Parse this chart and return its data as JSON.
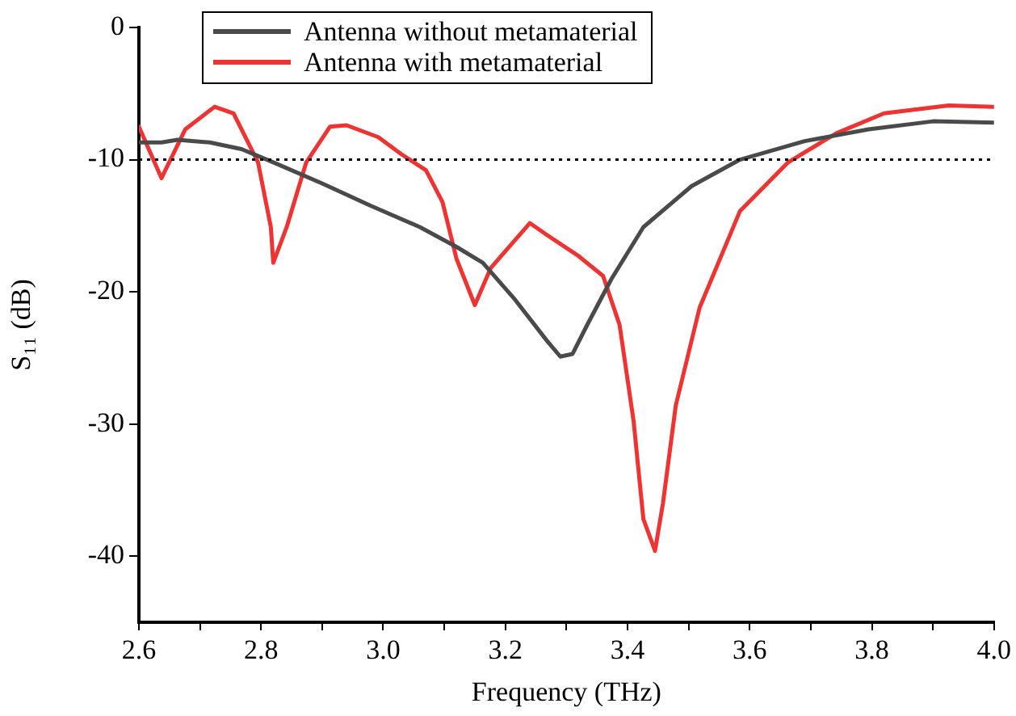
{
  "chart_data": {
    "type": "line",
    "xlabel": "Frequency (THz)",
    "ylabel": "S₁₁ (dB)",
    "xlim": [
      2.6,
      4.0
    ],
    "xticks": [
      {
        "value": 2.6,
        "label": "2.6"
      },
      {
        "value": 2.7,
        "label": null
      },
      {
        "value": 2.8,
        "label": "2.8"
      },
      {
        "value": 2.9,
        "label": null
      },
      {
        "value": 3.0,
        "label": "3.0"
      },
      {
        "value": 3.1,
        "label": null
      },
      {
        "value": 3.2,
        "label": "3.2"
      },
      {
        "value": 3.3,
        "label": null
      },
      {
        "value": 3.4,
        "label": "3.4"
      },
      {
        "value": 3.5,
        "label": null
      },
      {
        "value": 3.6,
        "label": "3.6"
      },
      {
        "value": 3.7,
        "label": null
      },
      {
        "value": 3.8,
        "label": "3.8"
      },
      {
        "value": 3.9,
        "label": null
      },
      {
        "value": 4.0,
        "label": "4.0"
      }
    ],
    "ylim": [
      -45,
      0
    ],
    "yticks": [
      -40,
      -30,
      -20,
      -10,
      0
    ],
    "grid": false,
    "legend": "top",
    "marker": "none",
    "line_style": "solid",
    "ref_lines": [
      {
        "axis": "y",
        "value": -10,
        "color": "#000000",
        "line_style": "dotted"
      }
    ],
    "series": [
      {
        "name": "Antenna without metamaterial",
        "color": "#4a4a4a",
        "x": [
          2.6,
          2.637,
          2.663,
          2.716,
          2.768,
          2.82,
          2.9,
          2.98,
          3.06,
          3.12,
          3.163,
          3.216,
          3.268,
          3.29,
          3.31,
          3.334,
          3.374,
          3.426,
          3.505,
          3.584,
          3.69,
          3.795,
          3.9,
          4.0
        ],
        "values": [
          -8.7,
          -8.7,
          -8.5,
          -8.7,
          -9.2,
          -10.2,
          -11.8,
          -13.5,
          -15.1,
          -16.6,
          -17.8,
          -20.6,
          -23.7,
          -24.9,
          -24.7,
          -22.5,
          -19,
          -15.1,
          -12,
          -10,
          -8.6,
          -7.7,
          -7.1,
          -7.2
        ]
      },
      {
        "name": "Antenna with metamaterial",
        "color": "#ee3333",
        "x": [
          2.6,
          2.637,
          2.676,
          2.724,
          2.755,
          2.795,
          2.816,
          2.82,
          2.842,
          2.874,
          2.913,
          2.94,
          2.992,
          3.03,
          3.07,
          3.097,
          3.12,
          3.15,
          3.176,
          3.24,
          3.268,
          3.32,
          3.36,
          3.387,
          3.41,
          3.426,
          3.445,
          3.458,
          3.479,
          3.518,
          3.584,
          3.663,
          3.742,
          3.82,
          3.926,
          4.0
        ],
        "values": [
          -7.5,
          -11.4,
          -7.7,
          -6.0,
          -6.5,
          -10.2,
          -15.1,
          -17.8,
          -15.1,
          -10.2,
          -7.5,
          -7.4,
          -8.3,
          -9.6,
          -10.8,
          -13.2,
          -17.5,
          -21,
          -18.2,
          -14.8,
          -15.7,
          -17.3,
          -18.8,
          -22.5,
          -29.8,
          -37.2,
          -39.6,
          -36,
          -28.6,
          -21.2,
          -13.9,
          -10.2,
          -8,
          -6.5,
          -5.9,
          -6
        ]
      }
    ]
  }
}
